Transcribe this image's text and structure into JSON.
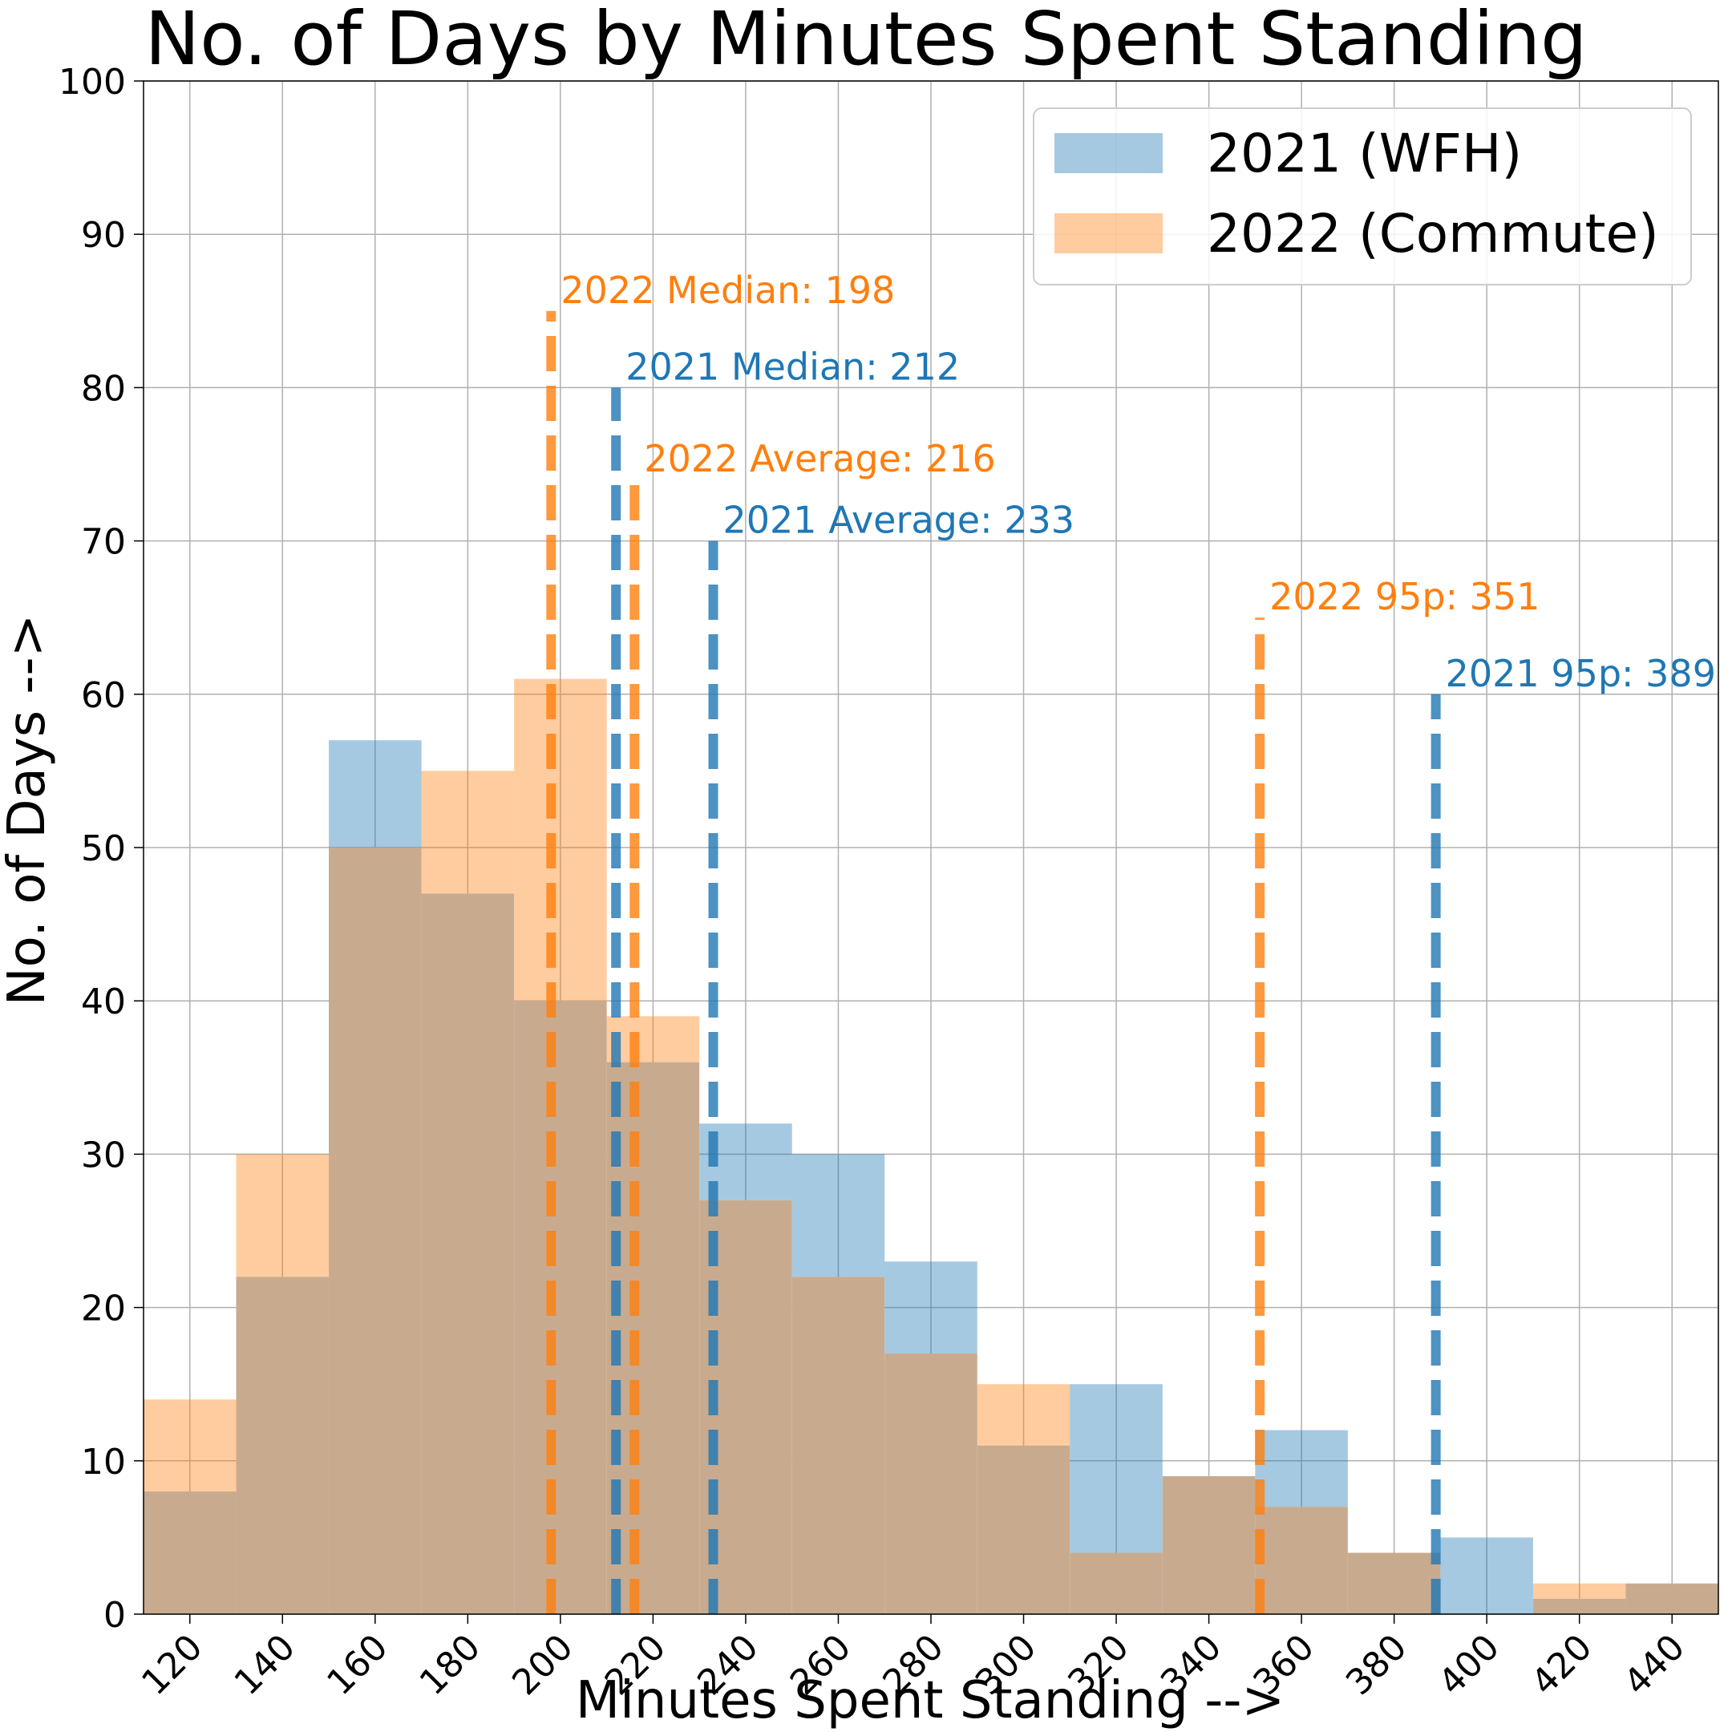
{
  "chart_data": {
    "type": "bar",
    "title": "No. of Days by Minutes Spent Standing",
    "xlabel": "Minutes Spent Standing -->",
    "ylabel": "No. of Days -->",
    "xlim": [
      110,
      450
    ],
    "ylim": [
      0,
      100
    ],
    "xticks": [
      120,
      140,
      160,
      180,
      200,
      220,
      240,
      260,
      280,
      300,
      320,
      340,
      360,
      380,
      400,
      420,
      440
    ],
    "yticks": [
      0,
      10,
      20,
      30,
      40,
      50,
      60,
      70,
      80,
      90,
      100
    ],
    "grid": true,
    "legend_position": "top-right",
    "bin_width": 20,
    "bin_starts": [
      110,
      130,
      150,
      170,
      190,
      210,
      230,
      250,
      270,
      290,
      310,
      330,
      350,
      370,
      390,
      410,
      430
    ],
    "series": [
      {
        "name": "2021 (WFH)",
        "color": "#1f77b4",
        "values": [
          8,
          22,
          57,
          47,
          40,
          36,
          32,
          30,
          23,
          11,
          15,
          9,
          12,
          4,
          5,
          1,
          2
        ]
      },
      {
        "name": "2022 (Commute)",
        "color": "#ff7f0e",
        "values": [
          14,
          30,
          50,
          55,
          61,
          39,
          27,
          22,
          17,
          15,
          4,
          9,
          7,
          4,
          0,
          2,
          2
        ]
      }
    ],
    "overlap_color": "#c8ab8f",
    "annotations": [
      {
        "label": "2022 Median: 198",
        "x": 198,
        "height": 85,
        "color": "#ff7f0e"
      },
      {
        "label": "2021 Median: 212",
        "x": 212,
        "height": 80,
        "color": "#1f77b4"
      },
      {
        "label": "2022 Average: 216",
        "x": 216,
        "height": 74,
        "color": "#ff7f0e"
      },
      {
        "label": "2021 Average: 233",
        "x": 233,
        "height": 70,
        "color": "#1f77b4"
      },
      {
        "label": "2022 95p: 351",
        "x": 351,
        "height": 65,
        "color": "#ff7f0e"
      },
      {
        "label": "2021 95p: 389",
        "x": 389,
        "height": 60,
        "color": "#1f77b4"
      }
    ]
  }
}
